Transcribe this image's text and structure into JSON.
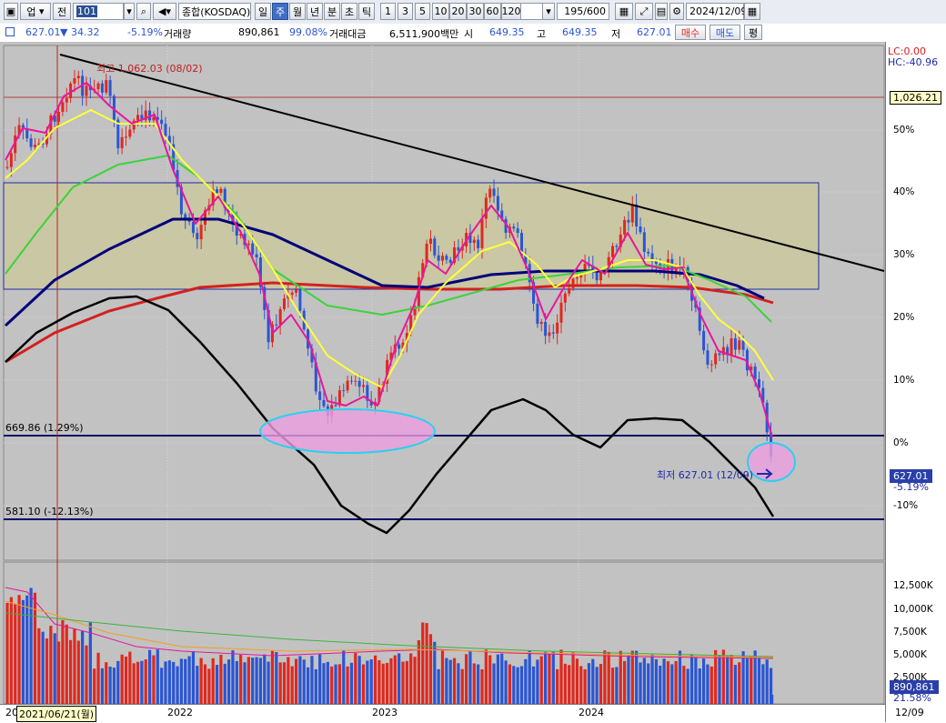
{
  "toolbar": {
    "market_label": "업",
    "market_sub": "전",
    "code": "101",
    "index_name": "종합(KOSDAQ)",
    "periods": [
      "일",
      "주",
      "월",
      "년",
      "분",
      "초",
      "틱"
    ],
    "selected_period": "주",
    "intervals": [
      "1",
      "3",
      "5",
      "10",
      "20",
      "30",
      "60",
      "120"
    ],
    "count": "195/600",
    "date": "2024/12/09"
  },
  "quote": {
    "price": "627.01",
    "change": "▼ 34.32",
    "change_pct": "-5.19%",
    "volume_label": "거래량",
    "volume": "890,861",
    "volume_ratio": "99.08%",
    "amount_label": "거래대금",
    "amount": "6,511,900백만",
    "open_label": "시",
    "open": "649.35",
    "high_label": "고",
    "high": "649.35",
    "low_label": "저",
    "low": "627.01",
    "buy_label": "매수",
    "sell_label": "매도",
    "flat_label": "평"
  },
  "chart": {
    "lc_label": "LC:0.00",
    "hc_label": "HC:-40.96",
    "hline_price": "1,026.21",
    "current_price": "627.01",
    "current_pct": "-5.19%",
    "pct_ticks": [
      "50%",
      "40%",
      "30%",
      "20%",
      "10%",
      "0%",
      "-10%"
    ],
    "annotations": {
      "high": "최고 1,062.03 (08/02)",
      "low": "최저 627.01 (12/09)",
      "support1": "669.86 (1.29%)",
      "support2": "581.10 (-12.13%)"
    },
    "x_labels": [
      "20",
      "2022",
      "2023",
      "2024",
      "12/09"
    ],
    "cursor_date": "2021/06/21(월)",
    "volume_ticks": [
      "12,500K",
      "10,000K",
      "7,500K",
      "5,000K",
      "2,500K"
    ],
    "volume_current": "890,861",
    "volume_pct": "21.58%"
  },
  "colors": {
    "up": "#e0281e",
    "down": "#2a55d4",
    "ma5": "#e8169e",
    "ma20": "#ffff3a",
    "ma60": "#3cd23c",
    "ma120": "#00007a",
    "ma240": "#d42020"
  }
}
